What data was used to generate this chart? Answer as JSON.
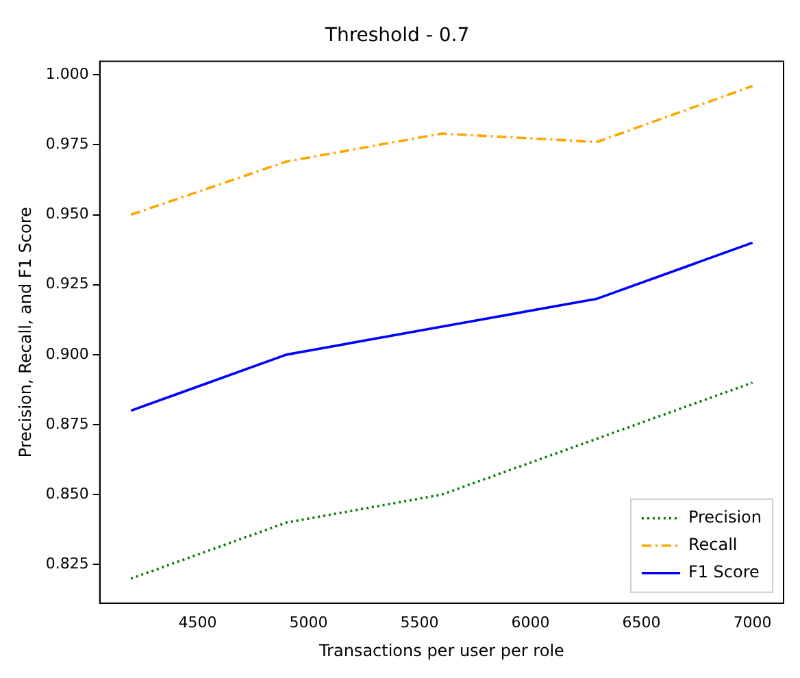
{
  "chart_data": {
    "type": "line",
    "title": "Threshold - 0.7",
    "xlabel": "Transactions per user per role",
    "ylabel": "Precision, Recall, and F1 Score",
    "x": [
      4200,
      4900,
      5600,
      6300,
      7000
    ],
    "series": [
      {
        "name": "Precision",
        "color": "#008000",
        "line_style": "dotted",
        "values": [
          0.82,
          0.84,
          0.85,
          0.87,
          0.89
        ]
      },
      {
        "name": "Recall",
        "color": "#ffa500",
        "line_style": "dashed",
        "values": [
          0.95,
          0.969,
          0.979,
          0.976,
          0.996
        ]
      },
      {
        "name": "F1 Score",
        "color": "#0000ff",
        "line_style": "solid",
        "values": [
          0.88,
          0.9,
          0.91,
          0.92,
          0.94
        ]
      }
    ],
    "xlim": [
      4060,
      7140
    ],
    "xticks": [
      4500,
      5000,
      5500,
      6000,
      6500,
      7000
    ],
    "ylim": [
      0.8112,
      1.0048
    ],
    "yticks": [
      0.825,
      {
        "value": 0.85,
        "label": "0.850"
      },
      0.875,
      {
        "value": 0.9,
        "label": "0.900"
      },
      0.925,
      {
        "value": 0.95,
        "label": "0.950"
      },
      0.975,
      {
        "value": 1,
        "label": "1.000"
      }
    ],
    "grid": false,
    "legend": "bottom right",
    "marker": "none"
  }
}
